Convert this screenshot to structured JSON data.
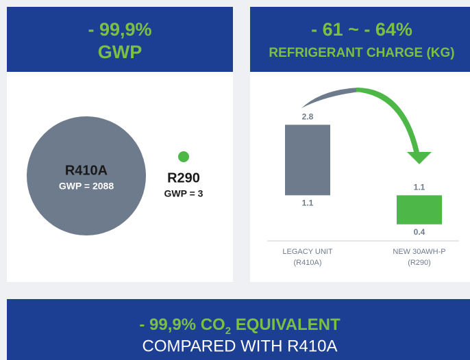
{
  "left": {
    "header": {
      "value": "- 99,9%",
      "label": "GWP"
    },
    "items": [
      {
        "name": "R410A",
        "gwp": "GWP = 2088"
      },
      {
        "name": "R290",
        "gwp": "GWP = 3"
      }
    ]
  },
  "right": {
    "header": {
      "value": "- 61 ~ - 64%",
      "label": "REFRIGERANT CHARGE (KG)"
    },
    "bars": [
      {
        "category": [
          "LEGACY UNIT",
          "(R410A)"
        ],
        "high": 2.8,
        "low": 1.1,
        "color": "#6e7b8c"
      },
      {
        "category": [
          "NEW 30AWH-P",
          "(R290)"
        ],
        "high": 1.1,
        "low": 0.4,
        "color": "#4db848"
      }
    ]
  },
  "footer": {
    "line1": [
      "- 99,9% CO",
      "2",
      " EQUIVALENT"
    ],
    "line2": "COMPARED WITH R410A"
  }
}
